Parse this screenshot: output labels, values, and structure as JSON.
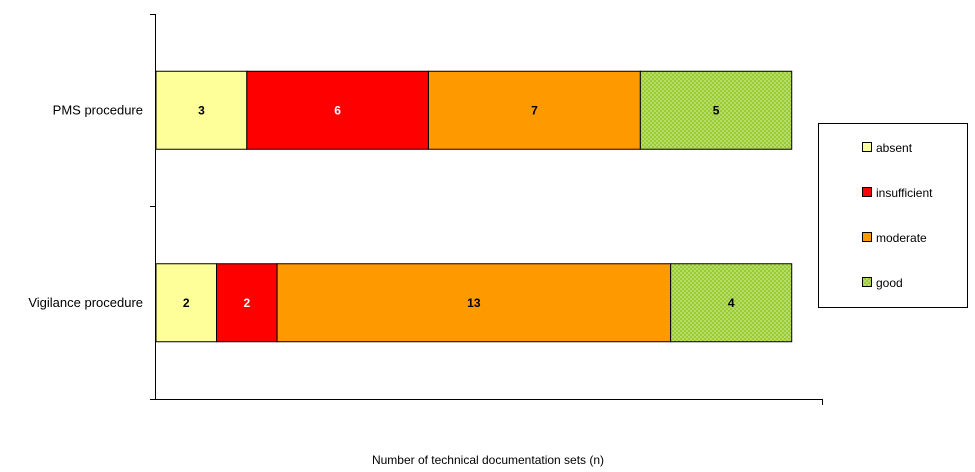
{
  "chart_data": {
    "type": "bar",
    "orientation": "horizontal",
    "stacked": true,
    "categories": [
      "PMS procedure",
      "Vigilance procedure"
    ],
    "series": [
      {
        "name": "absent",
        "values": [
          3,
          2
        ],
        "color": "#ffff99",
        "label_color": "#000000"
      },
      {
        "name": "insufficient",
        "values": [
          6,
          2
        ],
        "color": "#ff0000",
        "label_color": "#ffffff"
      },
      {
        "name": "moderate",
        "values": [
          7,
          13
        ],
        "color": "#ff9900",
        "label_color": "#000000"
      },
      {
        "name": "good",
        "values": [
          5,
          4
        ],
        "color": "#99cc33",
        "label_color": "#000000",
        "pattern": "dotted"
      }
    ],
    "xlim": [
      0,
      22
    ],
    "xlabel": "Number of technical documentation sets (n)",
    "title": "",
    "legend_position": "right",
    "grid": false
  }
}
